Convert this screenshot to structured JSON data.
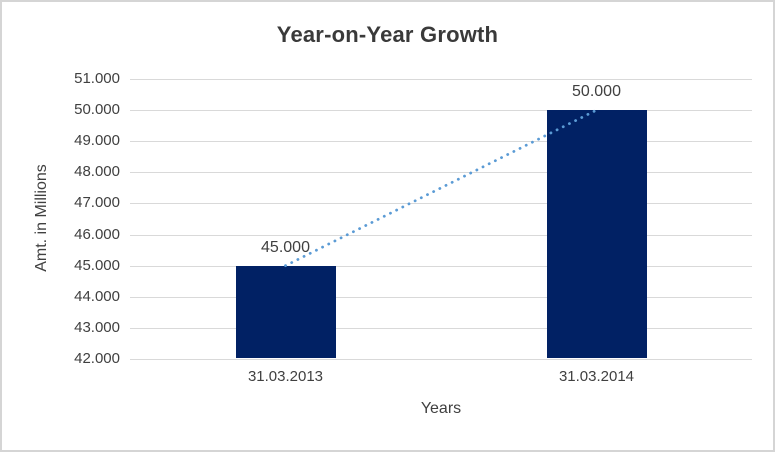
{
  "chart": {
    "title": "Year-on-Year Growth",
    "y_axis_title": "Amt. in Millions",
    "x_axis_title": "Years"
  },
  "chart_data": {
    "type": "bar",
    "title": "Year-on-Year Growth",
    "xlabel": "Years",
    "ylabel": "Amt. in Millions",
    "categories": [
      "31.03.2013",
      "31.03.2014"
    ],
    "values": [
      45000,
      50000
    ],
    "data_labels": [
      "45.000",
      "50.000"
    ],
    "ylim": [
      42000,
      51000
    ],
    "y_ticks": [
      {
        "value": 51000,
        "label": "51.000"
      },
      {
        "value": 50000,
        "label": "50.000"
      },
      {
        "value": 49000,
        "label": "49.000"
      },
      {
        "value": 48000,
        "label": "48.000"
      },
      {
        "value": 47000,
        "label": "47.000"
      },
      {
        "value": 46000,
        "label": "46.000"
      },
      {
        "value": 45000,
        "label": "45.000"
      },
      {
        "value": 44000,
        "label": "44.000"
      },
      {
        "value": 43000,
        "label": "43.000"
      },
      {
        "value": 42000,
        "label": "42.000"
      }
    ],
    "grid": true,
    "legend": false,
    "trendline": {
      "style": "dotted",
      "color": "#5b9bd5",
      "from_value": 45000,
      "to_value": 50000
    },
    "colors": {
      "bar": "#012164",
      "gridline": "#d9d9d9",
      "text": "#404040",
      "title_text": "#3a3a3a",
      "frame_border": "#d5d5d5"
    }
  }
}
